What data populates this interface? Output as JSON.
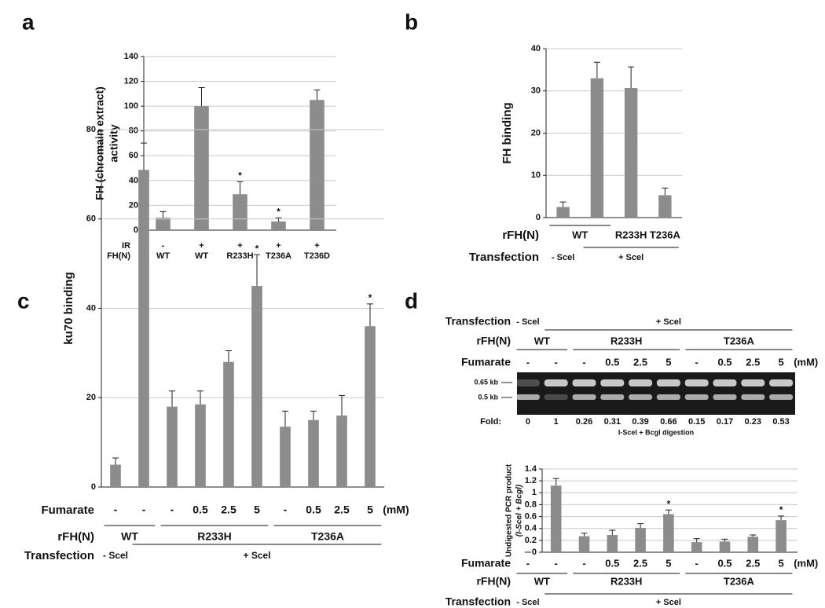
{
  "chart_data": [
    {
      "type": "bar",
      "panel": "a",
      "y_label_lines": [
        "FH (chromain extract)",
        "activity"
      ],
      "rows": [
        {
          "name": "IR",
          "labels": [
            "-",
            "+",
            "+",
            "+",
            "+"
          ]
        },
        {
          "name": "FH(N)",
          "labels": [
            "WT",
            "WT",
            "R233H",
            "T236A",
            "T236D"
          ]
        }
      ],
      "values": [
        10,
        100,
        29,
        7,
        105
      ],
      "errors": [
        5,
        15,
        10,
        3,
        8
      ],
      "markers": [
        null,
        null,
        "*",
        "*",
        null
      ],
      "color": "#8c8c8c",
      "ylim": [
        0,
        140
      ],
      "yticks": [
        0,
        20,
        40,
        60,
        80,
        100,
        120,
        140
      ],
      "grid": true
    },
    {
      "type": "bar",
      "panel": "b",
      "y_label_lines": [
        "FH binding"
      ],
      "rows": [
        {
          "name": "rFH(N)",
          "labels": [
            "WT",
            null,
            "R233H",
            "T236A"
          ]
        },
        {
          "name": "Transfection",
          "labels": [
            "- Scel",
            "+ Scel",
            null,
            null
          ]
        }
      ],
      "values": [
        2.5,
        33,
        30.7,
        5.3
      ],
      "errors": [
        1.2,
        3.8,
        5,
        1.7
      ],
      "markers": [
        null,
        null,
        null,
        null
      ],
      "color": "#8c8c8c",
      "ylim": [
        0,
        40
      ],
      "yticks": [
        0,
        10,
        20,
        30,
        40
      ],
      "grid": true
    },
    {
      "type": "bar",
      "panel": "c",
      "y_label_lines": [
        "ku70 binding"
      ],
      "rows": [
        {
          "name": "Fumarate",
          "labels": [
            "-",
            "-",
            "-",
            "0.5",
            "2.5",
            "5",
            "-",
            "0.5",
            "2.5",
            "5"
          ],
          "unit": "(mM)"
        },
        {
          "name": "rFH(N)",
          "labels": [
            "WT",
            null,
            "R233H",
            null,
            null,
            null,
            "T236A",
            null,
            null,
            null
          ]
        },
        {
          "name": "Transfection",
          "labels": [
            "- Scel",
            "+ Scel",
            null,
            null,
            null,
            null,
            null,
            null,
            null,
            null
          ]
        }
      ],
      "values": [
        5,
        71,
        18,
        18.5,
        28,
        45,
        13.5,
        15,
        16,
        36
      ],
      "errors": [
        1.5,
        6,
        3.5,
        3,
        2.5,
        7,
        3.5,
        2,
        4.5,
        5
      ],
      "markers": [
        null,
        null,
        null,
        null,
        null,
        "*",
        null,
        null,
        null,
        "*"
      ],
      "color": "#8c8c8c",
      "ylim": [
        0,
        80
      ],
      "yticks": [
        0,
        20,
        40,
        60,
        80
      ],
      "grid": true
    },
    {
      "type": "bar",
      "panel": "d",
      "y_label_lines": [
        "Undigested PCR product",
        "(I-Scel + Bcgl)"
      ],
      "rows": [
        {
          "name": "Fumarate",
          "labels": [
            "-",
            "-",
            "-",
            "0.5",
            "2.5",
            "5",
            "-",
            "0.5",
            "2.5",
            "5"
          ],
          "unit": "(mM)"
        },
        {
          "name": "rFH(N)",
          "labels": [
            "WT",
            null,
            "R233H",
            null,
            null,
            null,
            "T236A",
            null,
            null,
            null
          ]
        },
        {
          "name": "Transfection",
          "labels": [
            "- Scel",
            "+ Scel",
            null,
            null,
            null,
            null,
            null,
            null,
            null,
            null
          ]
        }
      ],
      "gel": {
        "band_labels": [
          "0.65 kb",
          "0.5 kb"
        ],
        "fold_label": "Fold:",
        "fold_values": [
          0,
          1,
          0.26,
          0.31,
          0.39,
          0.66,
          0.15,
          0.17,
          0.23,
          0.53
        ],
        "caption": "I-Scel + Bcgl digestion"
      },
      "values": [
        0,
        1.12,
        0.27,
        0.29,
        0.41,
        0.64,
        0.17,
        0.18,
        0.26,
        0.54
      ],
      "errors": [
        0,
        0.12,
        0.05,
        0.08,
        0.07,
        0.07,
        0.06,
        0.04,
        0.03,
        0.07
      ],
      "markers": [
        null,
        null,
        null,
        null,
        null,
        "*",
        null,
        null,
        null,
        "*"
      ],
      "color": "#8c8c8c",
      "ylim": [
        0,
        1.4
      ],
      "yticks": [
        0,
        0.2,
        0.4,
        0.6,
        0.8,
        1,
        1.2,
        1.4
      ],
      "grid": true
    }
  ]
}
